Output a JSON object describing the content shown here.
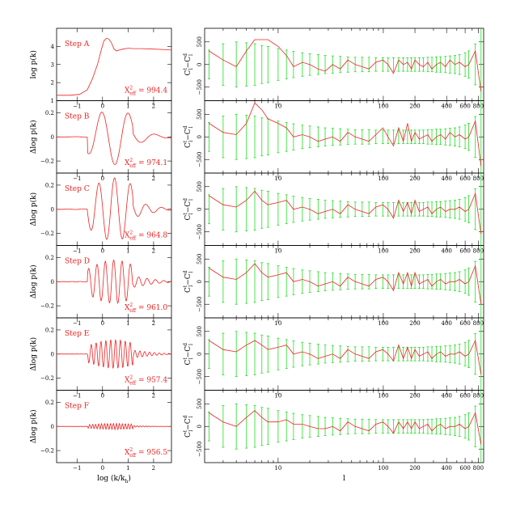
{
  "chart_data": {
    "type": "line",
    "figure_layout": "6 rows x 2 columns",
    "left_column": {
      "xlabel": "log (k/k",
      "xlabel_sub": "h",
      "xlabel_close": ")",
      "xlim": [
        -1.8,
        2.7
      ],
      "xticks": [
        -1,
        0,
        1,
        2
      ],
      "xtick_labels": [
        "−1",
        "0",
        "1",
        "2"
      ],
      "panels": [
        {
          "step": "Step A",
          "ylabel": "log p(k)",
          "ylim": [
            1,
            5
          ],
          "yticks": [
            1,
            2,
            3,
            4
          ],
          "ytick_labels": [
            "1",
            "2",
            "3",
            "4"
          ],
          "chi_prefix": "X",
          "chi_sup": "2",
          "chi_sub": "eff",
          "chi_value": " = 994.4",
          "amp": 0,
          "freq": 0
        },
        {
          "step": "Step B",
          "ylabel": "Δlog p(k)",
          "ylim": [
            -0.3,
            0.3
          ],
          "yticks": [
            -0.2,
            0,
            0.2
          ],
          "ytick_labels": [
            "−0.2",
            "0",
            "0.2"
          ],
          "chi_prefix": "X",
          "chi_sup": "2",
          "chi_sub": "eff",
          "chi_value": " = 974.1",
          "amp": 0.23,
          "freq": 1.0
        },
        {
          "step": "Step C",
          "ylabel": "Δlog p(k)",
          "ylim": [
            -0.3,
            0.3
          ],
          "yticks": [
            -0.2,
            0,
            0.2
          ],
          "ytick_labels": [
            "−0.2",
            "0",
            "0.2"
          ],
          "chi_prefix": "X",
          "chi_sup": "2",
          "chi_sub": "eff",
          "chi_value": " = 964.8",
          "amp": 0.26,
          "freq": 1.7
        },
        {
          "step": "Step D",
          "ylabel": "Δlog p(k)",
          "ylim": [
            -0.3,
            0.3
          ],
          "yticks": [
            -0.2,
            0,
            0.2
          ],
          "ytick_labels": [
            "−0.2",
            "0",
            "0.2"
          ],
          "chi_prefix": "X",
          "chi_sup": "2",
          "chi_sub": "eff",
          "chi_value": " = 961.0",
          "amp": 0.18,
          "freq": 3.2
        },
        {
          "step": "Step E",
          "ylabel": "Δlog p(k)",
          "ylim": [
            -0.3,
            0.3
          ],
          "yticks": [
            -0.2,
            0,
            0.2
          ],
          "ytick_labels": [
            "−0.2",
            "0",
            "0.2"
          ],
          "chi_prefix": "X",
          "chi_sup": "2",
          "chi_sub": "eff",
          "chi_value": " = 957.4",
          "amp": 0.12,
          "freq": 5.5
        },
        {
          "step": "Step F",
          "ylabel": "Δlog p(k)",
          "ylim": [
            -0.3,
            0.3
          ],
          "yticks": [
            -0.2,
            0,
            0.2
          ],
          "ytick_labels": [
            "−0.2",
            "0",
            "0.2"
          ],
          "chi_prefix": "X",
          "chi_sup": "2",
          "chi_sub": "eff",
          "chi_value": " = 956.5",
          "amp": 0.025,
          "freq": 9.0
        }
      ],
      "step_a_curve": {
        "x": [
          -1.8,
          -1.3,
          -0.9,
          -0.6,
          -0.4,
          -0.2,
          -0.05,
          0.05,
          0.15,
          0.25,
          0.35,
          0.45,
          0.55,
          0.65,
          0.8,
          1.0,
          1.2,
          1.5,
          2.0,
          2.5,
          2.7
        ],
        "y": [
          1.3,
          1.3,
          1.35,
          1.6,
          2.2,
          3.0,
          3.8,
          4.3,
          4.45,
          4.4,
          4.2,
          3.85,
          3.75,
          3.8,
          3.85,
          3.9,
          3.88,
          3.88,
          3.85,
          3.82,
          3.8
        ]
      }
    },
    "right_column": {
      "xlabel": "l",
      "ylabel_base": "C",
      "ylabel_sup1": "t",
      "ylabel_sub1": "l",
      "ylabel_minus": "−C",
      "ylabel_sup2": "d",
      "ylabel_sub2": "l",
      "xlim": [
        2,
        900
      ],
      "xtick_major": [
        10,
        100,
        200,
        400,
        600,
        800
      ],
      "xtick_labels": [
        "10",
        "100",
        "200",
        "400",
        "600",
        "800"
      ],
      "ylim": [
        -800,
        800
      ],
      "yticks": [
        -500,
        0,
        500
      ],
      "ytick_labels": [
        "−500",
        "0",
        "500"
      ],
      "multipoles": [
        2.2,
        3,
        4,
        5,
        6,
        7,
        8,
        10,
        12,
        14,
        17,
        20,
        24,
        28,
        33,
        39,
        46,
        54,
        63,
        73,
        85,
        99,
        111,
        125,
        140,
        155,
        170,
        185,
        200,
        220,
        240,
        265,
        290,
        320,
        350,
        390,
        430,
        480,
        530,
        600,
        650,
        750,
        850
      ],
      "error_bars": [
        320,
        460,
        500,
        480,
        460,
        420,
        400,
        350,
        320,
        290,
        260,
        240,
        220,
        200,
        190,
        180,
        170,
        160,
        160,
        160,
        150,
        150,
        150,
        150,
        150,
        150,
        150,
        150,
        150,
        150,
        150,
        160,
        160,
        170,
        170,
        180,
        190,
        200,
        220,
        260,
        300,
        450,
        1500
      ],
      "panels": [
        {
          "residuals": [
            300,
            100,
            -50,
            300,
            550,
            550,
            550,
            400,
            200,
            -50,
            50,
            0,
            -100,
            -150,
            0,
            -100,
            100,
            0,
            -50,
            -100,
            50,
            100,
            0,
            -200,
            100,
            0,
            50,
            -100,
            100,
            0,
            -50,
            50,
            -100,
            0,
            50,
            -50,
            100,
            0,
            50,
            -50,
            0,
            300,
            -600
          ]
        },
        {
          "residuals": [
            300,
            100,
            50,
            300,
            750,
            600,
            400,
            300,
            200,
            0,
            50,
            0,
            -100,
            -50,
            0,
            -100,
            100,
            0,
            -50,
            -100,
            50,
            200,
            0,
            -200,
            200,
            -100,
            300,
            -100,
            100,
            -50,
            0,
            50,
            -100,
            0,
            50,
            -50,
            100,
            0,
            50,
            -50,
            0,
            350,
            -650
          ]
        },
        {
          "residuals": [
            300,
            100,
            50,
            200,
            400,
            200,
            100,
            150,
            200,
            0,
            50,
            0,
            -100,
            -50,
            0,
            -100,
            100,
            0,
            -50,
            -100,
            50,
            100,
            0,
            -200,
            200,
            -50,
            150,
            -100,
            200,
            -50,
            0,
            50,
            -100,
            0,
            50,
            -50,
            0,
            0,
            50,
            -50,
            0,
            350,
            -550
          ]
        },
        {
          "residuals": [
            300,
            100,
            50,
            200,
            400,
            200,
            100,
            150,
            200,
            0,
            50,
            0,
            -100,
            -50,
            0,
            -100,
            100,
            0,
            -50,
            -100,
            50,
            100,
            0,
            -200,
            200,
            -50,
            200,
            -100,
            200,
            -50,
            0,
            50,
            -100,
            0,
            50,
            -50,
            0,
            0,
            50,
            -50,
            0,
            350,
            -500
          ]
        },
        {
          "residuals": [
            300,
            100,
            50,
            200,
            300,
            200,
            100,
            150,
            200,
            0,
            50,
            0,
            -100,
            -50,
            0,
            -100,
            100,
            0,
            -50,
            -100,
            50,
            100,
            0,
            -150,
            200,
            -100,
            150,
            -100,
            100,
            -50,
            0,
            50,
            -100,
            0,
            50,
            -50,
            0,
            0,
            50,
            -50,
            0,
            300,
            -450
          ]
        },
        {
          "residuals": [
            300,
            100,
            0,
            200,
            350,
            200,
            100,
            100,
            150,
            50,
            50,
            0,
            -50,
            -50,
            0,
            -100,
            100,
            0,
            -50,
            -100,
            50,
            100,
            0,
            -150,
            100,
            -50,
            100,
            -50,
            100,
            -50,
            0,
            50,
            -100,
            0,
            50,
            -50,
            0,
            0,
            50,
            -50,
            0,
            300,
            -400
          ]
        }
      ]
    }
  }
}
